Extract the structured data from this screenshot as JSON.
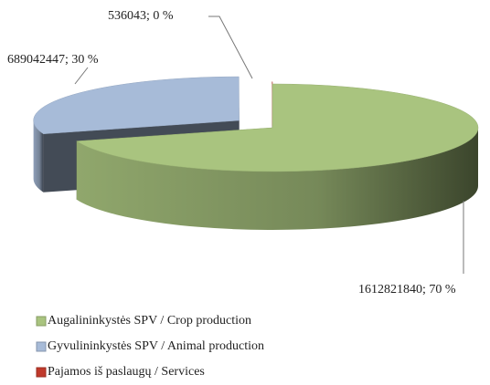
{
  "chart_data": {
    "type": "pie",
    "categories": [
      "Augalininkystės SPV / Crop production",
      "Gyvulininkystės SPV / Animal production",
      "Pajamos iš paslaugų / Services"
    ],
    "values": [
      1612821840,
      689042447,
      536043
    ],
    "value_labels": [
      "1612821840; 70 %",
      "689042447; 30 %",
      "536043; 0 %"
    ],
    "colors": [
      "#a9c47f",
      "#a7bbd8",
      "#c0392b"
    ],
    "legend": "bottom"
  }
}
